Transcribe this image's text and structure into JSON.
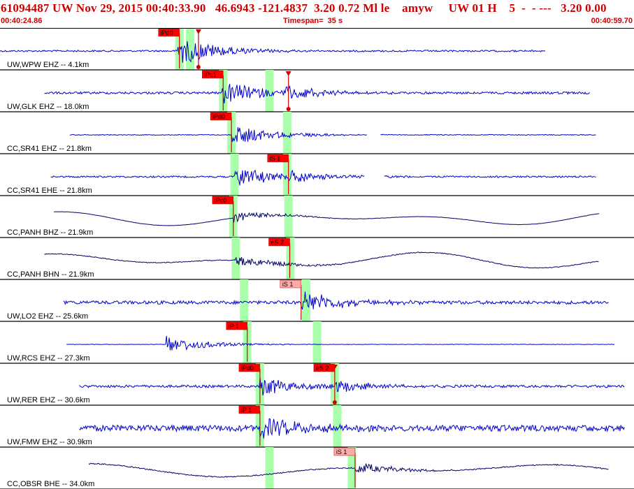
{
  "header": {
    "title": "61094487 UW Nov 29, 2015 00:40:33.90   46.6943 -121.4837  3.20 0.72 Ml le    amyw     UW 01 H    5  -  - ---   3.20 0.00",
    "start_time": "00:40:24.86",
    "timespan": "Timespan=  35 s",
    "end_time": "00:40:59.70"
  },
  "colors": {
    "trace_blue": "#0000cc",
    "trace_dark": "#000066",
    "pick_red": "#cc0000",
    "pick_label_bg": "#ff0000",
    "pick_label_light": "#ffaaaa",
    "window_green": "#aaffaa",
    "title_red": "#cc0000"
  },
  "traces": [
    {
      "label": "UW,WPW EHZ -- 4.1km",
      "style": "blue",
      "start": 0.0,
      "end": 0.86,
      "event": 0.28,
      "amp": 0.75,
      "noise": 0.06,
      "picks": [
        {
          "label": "iPd0",
          "t": 0.283,
          "light": false
        },
        {
          "label": "",
          "t": 0.313,
          "light": false,
          "marker": true
        }
      ],
      "windows": [
        0.283,
        0.3
      ]
    },
    {
      "label": "UW,GLK EHZ -- 18.0km",
      "style": "blue",
      "start": 0.07,
      "end": 0.93,
      "event": 0.35,
      "amp": 0.6,
      "noise": 0.08,
      "second": 0.45,
      "picks": [
        {
          "label": "iPc1",
          "t": 0.352,
          "light": false
        },
        {
          "label": "",
          "t": 0.455,
          "light": false,
          "marker": true
        }
      ],
      "windows": [
        0.352,
        0.425
      ]
    },
    {
      "label": "CC,SR41 EHZ -- 21.8km",
      "style": "blue",
      "start": 0.11,
      "end": 0.94,
      "gap": [
        0.58,
        0.6
      ],
      "event": 0.365,
      "amp": 0.55,
      "noise": 0.03,
      "picks": [
        {
          "label": "iPd0",
          "t": 0.365,
          "light": false
        }
      ],
      "windows": [
        0.365,
        0.453
      ]
    },
    {
      "label": "CC,SR41 EHE -- 21.8km",
      "style": "blue",
      "start": 0.08,
      "end": 0.94,
      "gap": [
        0.575,
        0.605
      ],
      "event": 0.37,
      "amp": 0.55,
      "noise": 0.06,
      "second": 0.455,
      "picks": [
        {
          "label": "iS 1",
          "t": 0.455,
          "light": false
        }
      ],
      "windows": [
        0.37,
        0.453
      ]
    },
    {
      "label": "CC,PANH BHZ -- 21.9km",
      "style": "dark",
      "start": 0.085,
      "end": 0.945,
      "event": 0.368,
      "amp": 0.25,
      "noise": 0.01,
      "wave": 0.35,
      "picks": [
        {
          "label": "iPc0",
          "t": 0.368,
          "light": false
        }
      ],
      "windows": [
        0.368,
        0.455
      ]
    },
    {
      "label": "CC,PANH BHN -- 21.9km",
      "style": "dark",
      "start": 0.07,
      "end": 0.945,
      "event": 0.372,
      "amp": 0.3,
      "noise": 0.03,
      "wave": 0.4,
      "picks": [
        {
          "label": "eS 2",
          "t": 0.457,
          "light": false
        }
      ],
      "windows": [
        0.372,
        0.458
      ]
    },
    {
      "label": "UW,LO2 EHZ -- 25.6km",
      "style": "blue",
      "start": 0.1,
      "end": 0.96,
      "event": 0.475,
      "amp": 0.6,
      "noise": 0.12,
      "picks": [
        {
          "label": "iS 1",
          "t": 0.475,
          "light": true
        }
      ],
      "windows": [
        0.385,
        0.483
      ]
    },
    {
      "label": "UW,RCS EHZ -- 27.3km",
      "style": "blue",
      "start": 0.105,
      "end": 0.97,
      "event": 0.262,
      "amp": 0.45,
      "noise": 0.015,
      "picks": [
        {
          "label": "iP 1",
          "t": 0.39,
          "light": false
        }
      ],
      "windows": [
        0.39,
        0.5
      ]
    },
    {
      "label": "UW,RER EHZ -- 30.6km",
      "style": "blue",
      "start": 0.125,
      "end": 0.985,
      "event": 0.41,
      "amp": 0.5,
      "noise": 0.09,
      "second": 0.528,
      "picks": [
        {
          "label": "iPd0",
          "t": 0.41,
          "light": false
        },
        {
          "label": "eS 2",
          "t": 0.528,
          "light": false,
          "marker": true
        }
      ],
      "windows": [
        0.41,
        0.528
      ]
    },
    {
      "label": "UW,FMW EHZ -- 30.9km",
      "style": "blue",
      "start": 0.125,
      "end": 0.985,
      "event": 0.41,
      "amp": 0.55,
      "noise": 0.22,
      "picks": [
        {
          "label": "iP 1",
          "t": 0.41,
          "light": false
        }
      ],
      "windows": [
        0.41,
        0.532
      ]
    },
    {
      "label": "CC,OBSR BHE -- 34.0km",
      "style": "dark",
      "start": 0.14,
      "end": 0.96,
      "event": 0.56,
      "amp": 0.3,
      "noise": 0.04,
      "wave": 0.35,
      "picks": [
        {
          "label": "iS 1",
          "t": 0.56,
          "light": true
        }
      ],
      "windows": [
        0.425,
        0.555
      ]
    }
  ]
}
